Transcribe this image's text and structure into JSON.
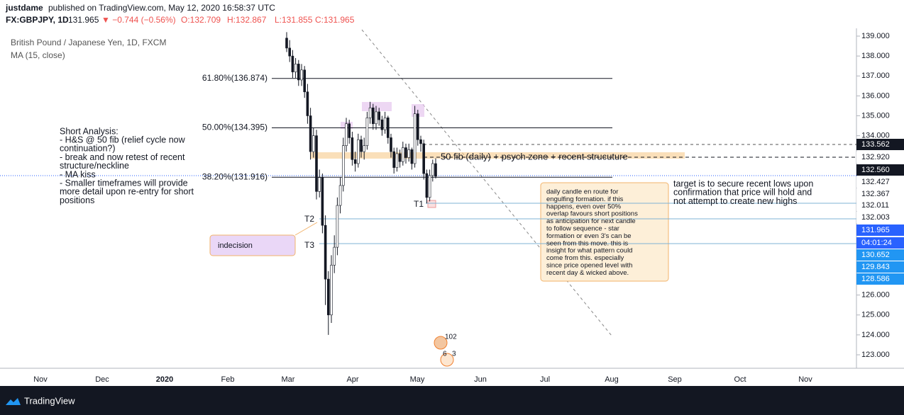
{
  "header": {
    "publisher": "justdame",
    "published": "published on TradingView.com, May 12, 2020 16:58:37 UTC"
  },
  "quote": {
    "symbol": "FX:GBPJPY, 1D",
    "last": "131.965",
    "change": "▼ −0.744 (−0.56%)",
    "open": "O:132.709",
    "high": "H:132.867",
    "low": "L:131.855",
    "close": "C:131.965"
  },
  "legend": {
    "instrument": "British Pound / Japanese Yen, 1D, FXCM",
    "indicator": "MA (15, close)"
  },
  "price_axis": {
    "ticks": [
      {
        "value": 139,
        "label": "139.000"
      },
      {
        "value": 138,
        "label": "138.000"
      },
      {
        "value": 137,
        "label": "137.000"
      },
      {
        "value": 136,
        "label": "136.000"
      },
      {
        "value": 135,
        "label": "135.000"
      },
      {
        "value": 134,
        "label": "134.000"
      },
      {
        "value": 126,
        "label": "126.000"
      },
      {
        "value": 125,
        "label": "125.000"
      },
      {
        "value": 124,
        "label": "124.000"
      },
      {
        "value": 123,
        "label": "123.000"
      }
    ],
    "labels": [
      "133.562",
      "132.920",
      "132.560",
      "132.427",
      "132.367",
      "132.011",
      "132.003",
      "131.965",
      "04:01:24",
      "130.652",
      "129.843",
      "128.586"
    ]
  },
  "time_axis": [
    "Nov",
    "Dec",
    "2020",
    "Feb",
    "Mar",
    "Apr",
    "May",
    "Jun",
    "Jul",
    "Aug",
    "Sep",
    "Oct",
    "Nov"
  ],
  "candles": [
    [
      138.9,
      139.2,
      138.2,
      138.4
    ],
    [
      138.4,
      138.8,
      137.7,
      138.0
    ],
    [
      138.0,
      138.3,
      136.9,
      137.2
    ],
    [
      137.2,
      137.9,
      136.9,
      137.6
    ],
    [
      137.6,
      137.8,
      136.5,
      136.8
    ],
    [
      136.8,
      137.6,
      136.5,
      137.3
    ],
    [
      137.3,
      137.5,
      135.9,
      136.2
    ],
    [
      136.2,
      136.6,
      134.6,
      135.0
    ],
    [
      135.0,
      135.4,
      132.8,
      133.2
    ],
    [
      133.2,
      134.4,
      132.9,
      134.0
    ],
    [
      134.0,
      134.3,
      130.8,
      131.2
    ],
    [
      131.2,
      132.3,
      130.9,
      131.9
    ],
    [
      131.9,
      132.1,
      129.1,
      129.5
    ],
    [
      129.5,
      130.0,
      125.5,
      126.8
    ],
    [
      126.8,
      127.2,
      124.0,
      125.0
    ],
    [
      125.0,
      128.0,
      124.6,
      127.5
    ],
    [
      127.5,
      129.0,
      127.1,
      128.4
    ],
    [
      128.4,
      130.9,
      128.0,
      130.5
    ],
    [
      130.5,
      131.9,
      130.1,
      131.5
    ],
    [
      131.5,
      133.9,
      131.2,
      133.5
    ],
    [
      133.5,
      134.9,
      133.2,
      134.6
    ],
    [
      134.6,
      134.8,
      133.6,
      133.9
    ],
    [
      133.9,
      134.2,
      132.5,
      132.8
    ],
    [
      132.8,
      133.2,
      132.2,
      132.6
    ],
    [
      132.6,
      134.1,
      132.4,
      133.8
    ],
    [
      133.8,
      134.0,
      132.9,
      133.2
    ],
    [
      133.2,
      133.9,
      132.8,
      133.5
    ],
    [
      133.5,
      135.2,
      133.3,
      134.9
    ],
    [
      134.9,
      135.7,
      134.6,
      135.4
    ],
    [
      135.4,
      135.6,
      134.3,
      134.6
    ],
    [
      134.6,
      135.5,
      134.3,
      135.2
    ],
    [
      135.2,
      135.4,
      134.5,
      134.8
    ],
    [
      134.8,
      135.0,
      134.0,
      134.3
    ],
    [
      134.3,
      135.2,
      134.1,
      134.9
    ],
    [
      134.9,
      135.0,
      133.6,
      133.9
    ],
    [
      133.9,
      134.1,
      132.9,
      133.2
    ],
    [
      133.2,
      133.4,
      132.1,
      132.4
    ],
    [
      132.4,
      133.4,
      132.2,
      133.1
    ],
    [
      133.1,
      133.3,
      132.4,
      132.7
    ],
    [
      132.7,
      133.7,
      132.5,
      133.4
    ],
    [
      133.4,
      133.6,
      132.6,
      132.9
    ],
    [
      132.9,
      133.6,
      132.7,
      133.3
    ],
    [
      133.3,
      133.4,
      132.3,
      132.6
    ],
    [
      132.6,
      135.5,
      132.4,
      135.1
    ],
    [
      135.1,
      135.3,
      133.5,
      133.8
    ],
    [
      133.8,
      134.0,
      133.2,
      133.6
    ],
    [
      133.6,
      133.8,
      131.8,
      132.1
    ],
    [
      132.1,
      132.3,
      130.6,
      130.9
    ],
    [
      130.9,
      132.3,
      130.7,
      132.0
    ],
    [
      132.0,
      132.8,
      131.7,
      132.6
    ],
    [
      132.6,
      132.867,
      131.855,
      131.965
    ]
  ],
  "fib_levels": [
    {
      "label": "61.80%(136.874)",
      "price": 136.874
    },
    {
      "label": "50.00%(134.395)",
      "price": 134.395
    },
    {
      "label": "38.20%(131.916)",
      "price": 131.916
    }
  ],
  "annotations": {
    "short_analysis": [
      "Short Analysis:",
      "- H&S @ 50 fib (relief cycle now",
      "continuation?)",
      "- break and now retest of recent",
      "structure/neckline",
      "- MA kiss",
      "- Smaller timeframes will provide",
      "more detail upon re-entry for short",
      "positions"
    ],
    "zone": "50 fib (daily) + psych zone + recent strucuture",
    "candle_note": [
      "daily candle en route for",
      "engulfing formation. if this",
      "happens, even over 50%",
      "overlap favours short positions",
      "as anticipation for next candle",
      "to follow sequence - star",
      "formation or even 3's can be",
      "seen from this move. this is",
      "insight for what pattern could",
      "come from this. especially",
      "since price opened level with",
      "recent day & wicked above."
    ],
    "target": [
      "target is to secure recent lows upon",
      "confirmation that price will hold and",
      "not attempt to create new highs"
    ],
    "indecision": "indecision",
    "t1": "T1",
    "t2": "T2",
    "t3": "T3",
    "events": [
      "102",
      "6",
      "3"
    ]
  },
  "footer": "TradingView"
}
